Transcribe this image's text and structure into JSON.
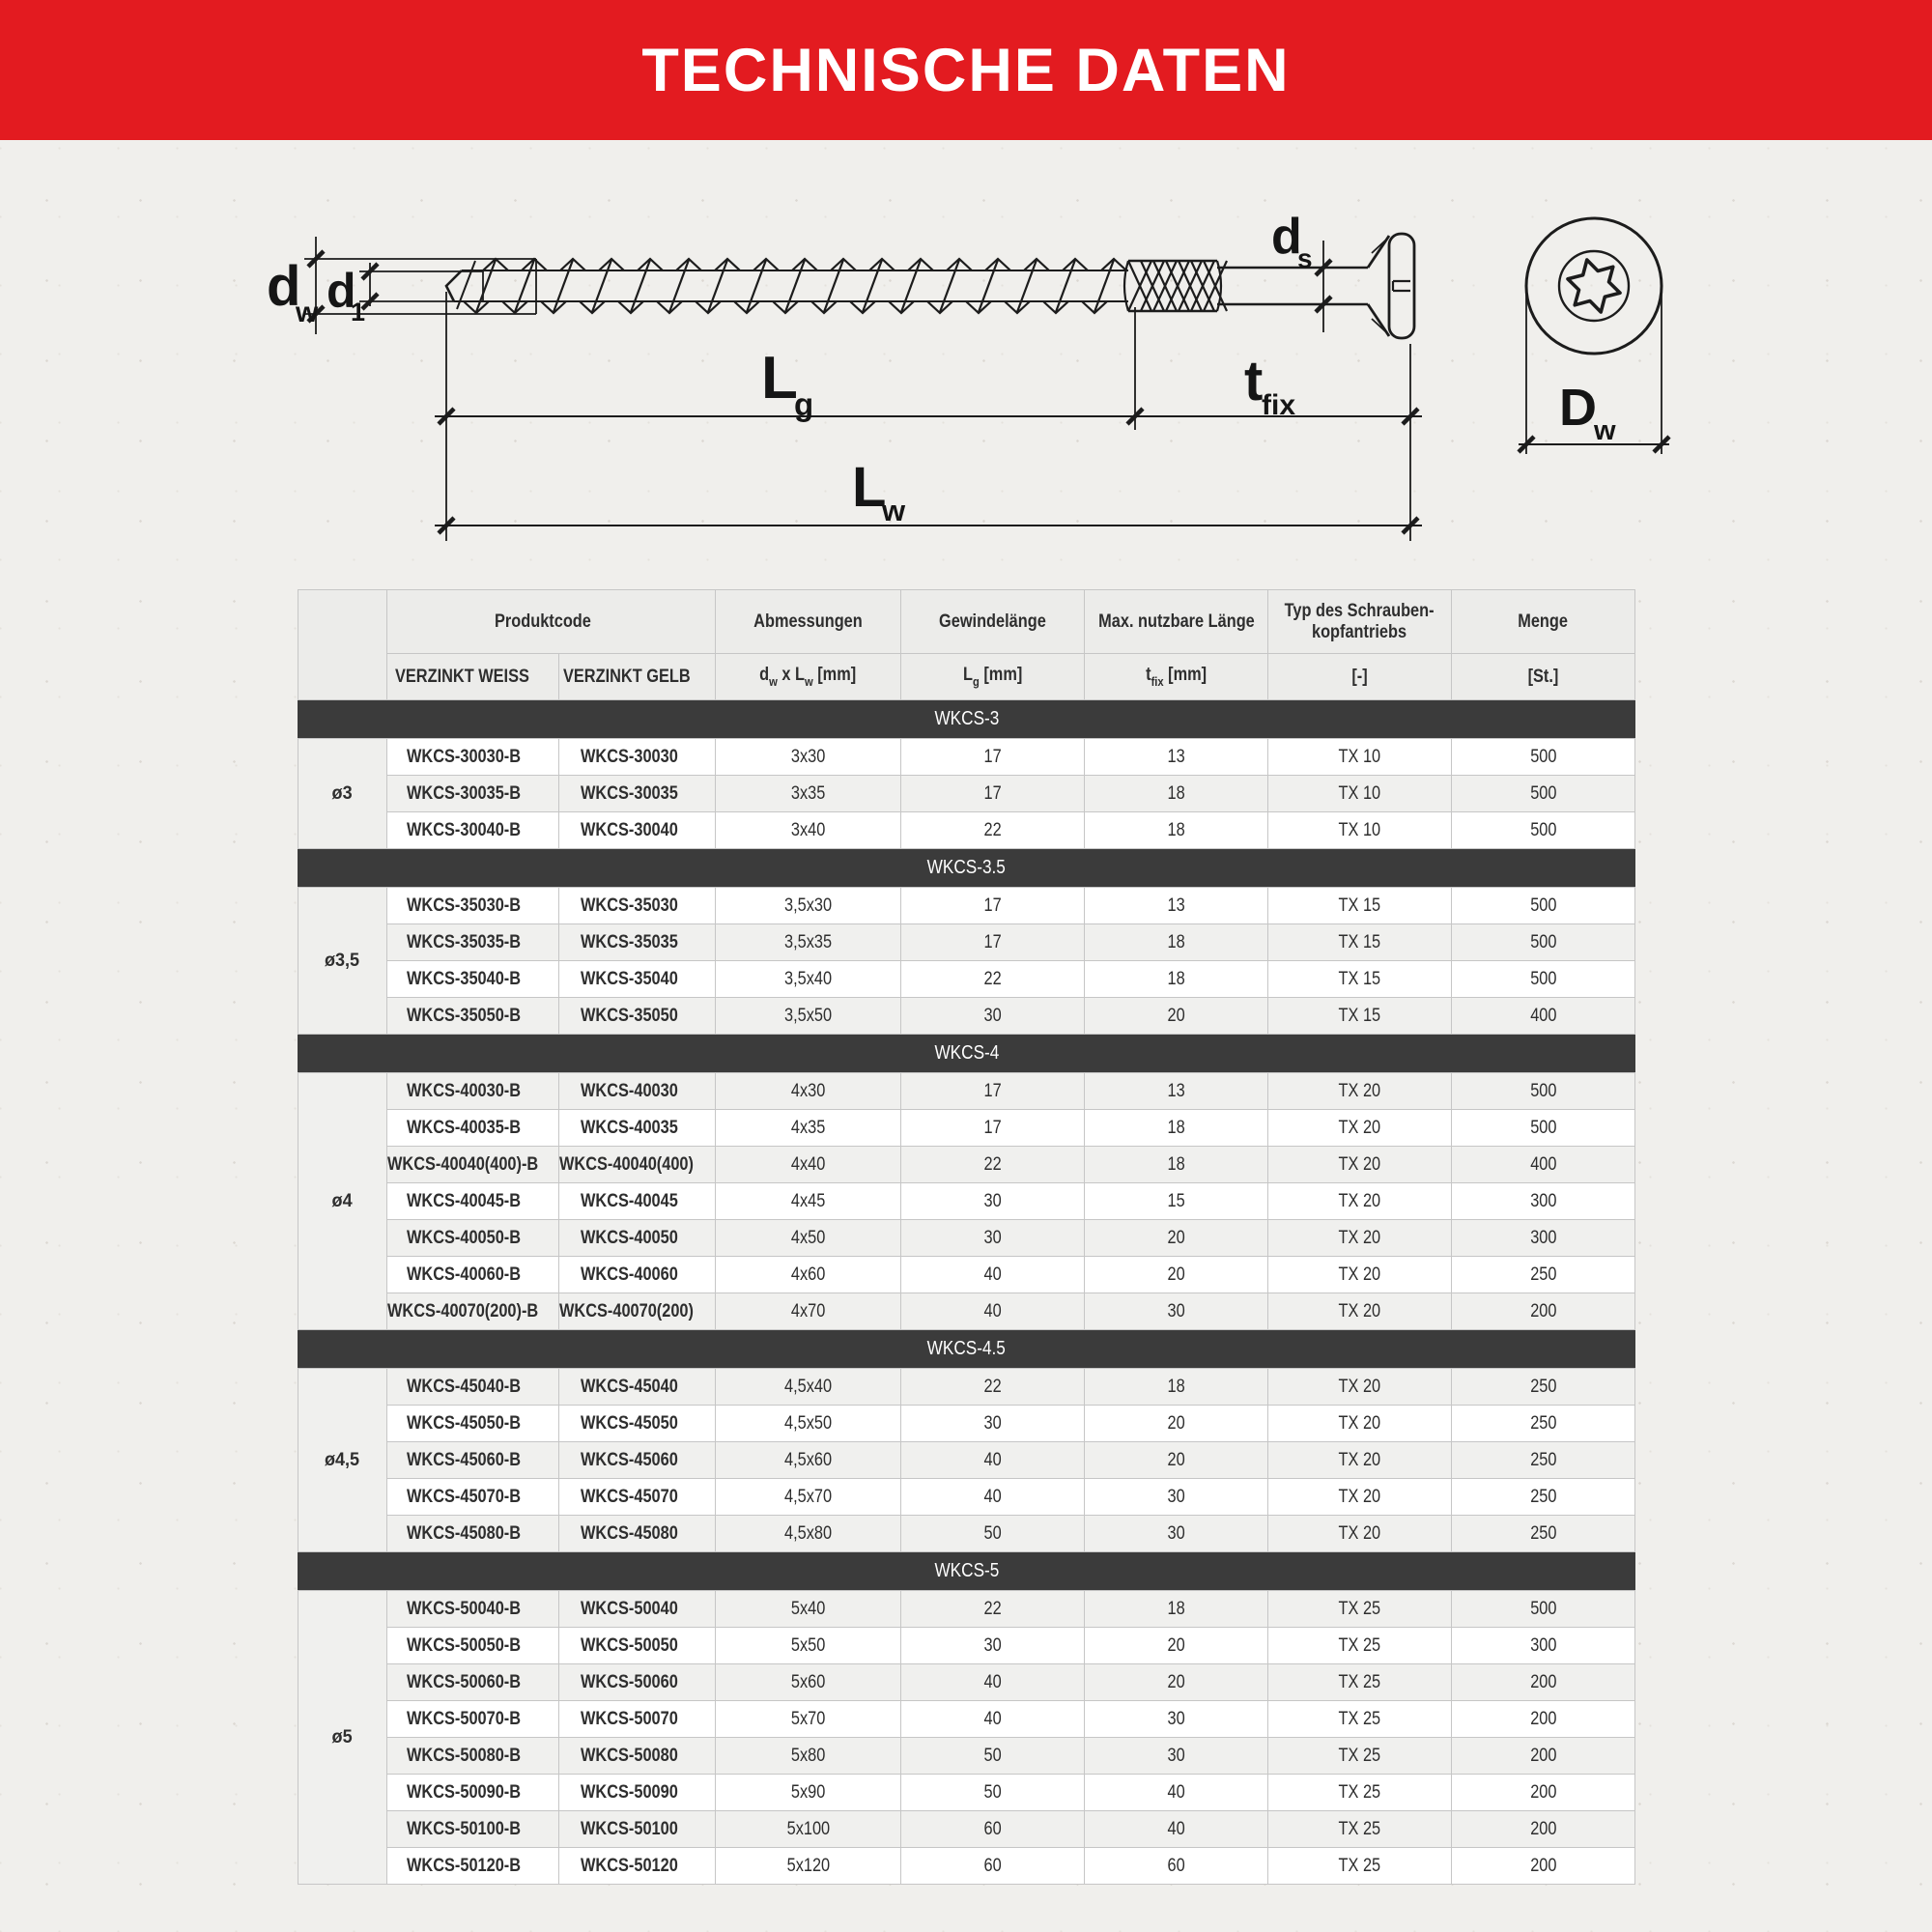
{
  "page": {
    "title": "TECHNISCHE DATEN"
  },
  "colors": {
    "banner_red": "#e31b20",
    "section_bar_dark": "#3b3b3b",
    "row_stripe_gray": "#f0f0ee",
    "paper_background": "#f0efec"
  },
  "drawing": {
    "labels": {
      "dw": {
        "main": "d",
        "sub": "w"
      },
      "d1": {
        "main": "d",
        "sub": "1"
      },
      "ds": {
        "main": "d",
        "sub": "s"
      },
      "lg": {
        "main": "L",
        "sub": "g"
      },
      "tfix": {
        "main": "t",
        "sub": "fix"
      },
      "lw": {
        "main": "L",
        "sub": "w"
      },
      "Dw": {
        "main": "D",
        "sub": "w"
      }
    }
  },
  "table": {
    "header": {
      "produktcode": "Produktcode",
      "abmessungen": "Abmessungen",
      "gewindelaenge": "Gewindelänge",
      "max_laenge": "Max. nutzbare Länge",
      "typ_line1": "Typ des Schrauben-",
      "typ_line2": "kopfantriebs",
      "menge": "Menge"
    },
    "units": {
      "weiss": "VERZINKT WEISS",
      "gelb": "VERZINKT GELB",
      "abmessungen": [
        {
          "t": "d"
        },
        {
          "t": "w",
          "sub": true
        },
        {
          "t": " x L"
        },
        {
          "t": "w",
          "sub": true
        },
        {
          "t": " [mm]"
        }
      ],
      "gewinde": [
        {
          "t": "L"
        },
        {
          "t": "g",
          "sub": true
        },
        {
          "t": " [mm]"
        }
      ],
      "tfix": [
        {
          "t": "t"
        },
        {
          "t": "fix",
          "sub": true
        },
        {
          "t": " [mm]"
        }
      ],
      "typ": "[-]",
      "menge": "[St.]"
    },
    "sections": [
      {
        "id": "WKCS-3",
        "diameter": "ø3",
        "rows": [
          [
            "WKCS-30030-B",
            "WKCS-30030",
            "3x30",
            "17",
            "13",
            "TX 10",
            "500"
          ],
          [
            "WKCS-30035-B",
            "WKCS-30035",
            "3x35",
            "17",
            "18",
            "TX 10",
            "500"
          ],
          [
            "WKCS-30040-B",
            "WKCS-30040",
            "3x40",
            "22",
            "18",
            "TX 10",
            "500"
          ]
        ]
      },
      {
        "id": "WKCS-3.5",
        "diameter": "ø3,5",
        "rows": [
          [
            "WKCS-35030-B",
            "WKCS-35030",
            "3,5x30",
            "17",
            "13",
            "TX 15",
            "500"
          ],
          [
            "WKCS-35035-B",
            "WKCS-35035",
            "3,5x35",
            "17",
            "18",
            "TX 15",
            "500"
          ],
          [
            "WKCS-35040-B",
            "WKCS-35040",
            "3,5x40",
            "22",
            "18",
            "TX 15",
            "500"
          ],
          [
            "WKCS-35050-B",
            "WKCS-35050",
            "3,5x50",
            "30",
            "20",
            "TX 15",
            "400"
          ]
        ]
      },
      {
        "id": "WKCS-4",
        "diameter": "ø4",
        "rows": [
          [
            "WKCS-40030-B",
            "WKCS-40030",
            "4x30",
            "17",
            "13",
            "TX 20",
            "500"
          ],
          [
            "WKCS-40035-B",
            "WKCS-40035",
            "4x35",
            "17",
            "18",
            "TX 20",
            "500"
          ],
          [
            "WKCS-40040(400)-B",
            "WKCS-40040(400)",
            "4x40",
            "22",
            "18",
            "TX 20",
            "400"
          ],
          [
            "WKCS-40045-B",
            "WKCS-40045",
            "4x45",
            "30",
            "15",
            "TX 20",
            "300"
          ],
          [
            "WKCS-40050-B",
            "WKCS-40050",
            "4x50",
            "30",
            "20",
            "TX 20",
            "300"
          ],
          [
            "WKCS-40060-B",
            "WKCS-40060",
            "4x60",
            "40",
            "20",
            "TX 20",
            "250"
          ],
          [
            "WKCS-40070(200)-B",
            "WKCS-40070(200)",
            "4x70",
            "40",
            "30",
            "TX 20",
            "200"
          ]
        ]
      },
      {
        "id": "WKCS-4.5",
        "diameter": "ø4,5",
        "rows": [
          [
            "WKCS-45040-B",
            "WKCS-45040",
            "4,5x40",
            "22",
            "18",
            "TX 20",
            "250"
          ],
          [
            "WKCS-45050-B",
            "WKCS-45050",
            "4,5x50",
            "30",
            "20",
            "TX 20",
            "250"
          ],
          [
            "WKCS-45060-B",
            "WKCS-45060",
            "4,5x60",
            "40",
            "20",
            "TX 20",
            "250"
          ],
          [
            "WKCS-45070-B",
            "WKCS-45070",
            "4,5x70",
            "40",
            "30",
            "TX 20",
            "250"
          ],
          [
            "WKCS-45080-B",
            "WKCS-45080",
            "4,5x80",
            "50",
            "30",
            "TX 20",
            "250"
          ]
        ]
      },
      {
        "id": "WKCS-5",
        "diameter": "ø5",
        "rows": [
          [
            "WKCS-50040-B",
            "WKCS-50040",
            "5x40",
            "22",
            "18",
            "TX 25",
            "500"
          ],
          [
            "WKCS-50050-B",
            "WKCS-50050",
            "5x50",
            "30",
            "20",
            "TX 25",
            "300"
          ],
          [
            "WKCS-50060-B",
            "WKCS-50060",
            "5x60",
            "40",
            "20",
            "TX 25",
            "200"
          ],
          [
            "WKCS-50070-B",
            "WKCS-50070",
            "5x70",
            "40",
            "30",
            "TX 25",
            "200"
          ],
          [
            "WKCS-50080-B",
            "WKCS-50080",
            "5x80",
            "50",
            "30",
            "TX 25",
            "200"
          ],
          [
            "WKCS-50090-B",
            "WKCS-50090",
            "5x90",
            "50",
            "40",
            "TX 25",
            "200"
          ],
          [
            "WKCS-50100-B",
            "WKCS-50100",
            "5x100",
            "60",
            "40",
            "TX 25",
            "200"
          ],
          [
            "WKCS-50120-B",
            "WKCS-50120",
            "5x120",
            "60",
            "60",
            "TX 25",
            "200"
          ]
        ]
      }
    ]
  }
}
